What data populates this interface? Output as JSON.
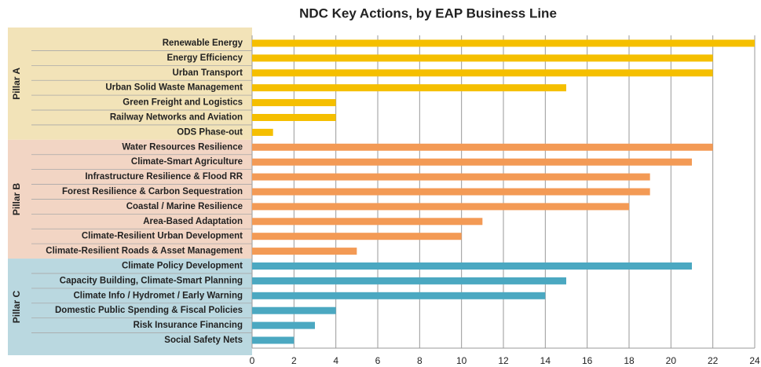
{
  "chart_data": {
    "type": "bar",
    "title": "NDC Key Actions, by EAP Business Line",
    "groups": [
      {
        "name": "Pillar A",
        "color": "#f5bf00",
        "background": "#f2e3b8",
        "categories": [
          "Renewable Energy",
          "Energy Efficiency",
          "Urban Transport",
          "Urban Solid Waste Management",
          "Green Freight and Logistics",
          "Railway Networks and Aviation",
          "ODS Phase-out"
        ],
        "values": [
          24,
          22,
          22,
          15,
          4,
          4,
          1
        ]
      },
      {
        "name": "Pillar B",
        "color": "#f39a55",
        "background": "#f2d5c4",
        "categories": [
          "Water Resources Resilience",
          "Climate-Smart Agriculture",
          "Infrastructure Resilience & Flood RR",
          "Forest Resilience & Carbon Sequestration",
          "Coastal / Marine Resilience",
          "Area-Based Adaptation",
          "Climate-Resilient Urban Development",
          "Climate-Resilient Roads & Asset Management"
        ],
        "values": [
          22,
          21,
          19,
          19,
          18,
          11,
          10,
          5
        ]
      },
      {
        "name": "Pillar C",
        "color": "#4ba8c1",
        "background": "#bad8e0",
        "categories": [
          "Climate Policy Development",
          "Capacity Building, Climate-Smart Planning",
          "Climate Info / Hydromet / Early Warning",
          "Domestic Public Spending & Fiscal Policies",
          "Risk Insurance Financing",
          "Social Safety Nets"
        ],
        "values": [
          21,
          15,
          14,
          4,
          3,
          2
        ]
      }
    ],
    "xlim": [
      0,
      24
    ],
    "xticks": [
      0,
      2,
      4,
      6,
      8,
      10,
      12,
      14,
      16,
      18,
      20,
      22,
      24
    ],
    "grid": true
  }
}
